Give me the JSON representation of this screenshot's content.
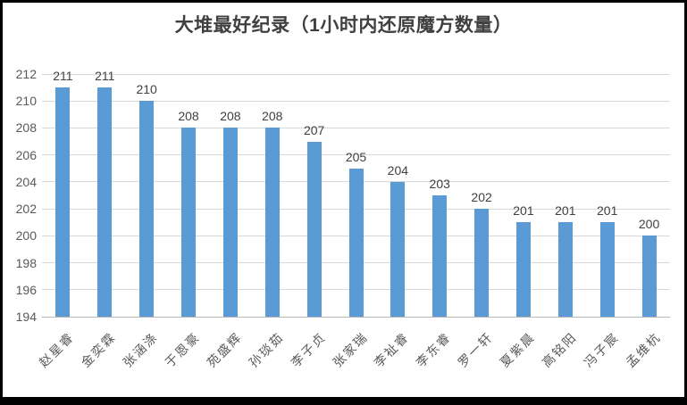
{
  "window": {
    "background": "#ffffff",
    "border_color": "#000000"
  },
  "chart_data": {
    "type": "bar",
    "title": "大堆最好纪录（1小时内还原魔方数量）",
    "categories": [
      "赵星睿",
      "金奕霖",
      "张涵涤",
      "于恩豪",
      "苑盛辉",
      "孙琰茹",
      "李子贞",
      "张家瑞",
      "李祉睿",
      "李东睿",
      "罗一轩",
      "夏紫晨",
      "高铭阳",
      "冯子宸",
      "孟维杭"
    ],
    "values": [
      211,
      211,
      210,
      208,
      208,
      208,
      207,
      205,
      204,
      203,
      202,
      201,
      201,
      201,
      200
    ],
    "data_labels": [
      "211",
      "211",
      "210",
      "208",
      "208",
      "208",
      "207",
      "205",
      "204",
      "203",
      "202",
      "201",
      "201",
      "201",
      "200"
    ],
    "xlabel": "",
    "ylabel": "",
    "ylim": [
      194,
      212
    ],
    "ytick_step": 2,
    "ytick_labels": [
      "194",
      "196",
      "198",
      "200",
      "202",
      "204",
      "206",
      "208",
      "210",
      "212"
    ],
    "grid": true,
    "legend": "none",
    "xtick_rotation_deg": 45,
    "bar_color": "#5b9bd5",
    "gridline_color": "#d9d9d9",
    "axis_line_color": "#b7b7b7",
    "title_color": "#404040",
    "data_label_color": "#404040",
    "tick_label_color": "#595959"
  }
}
